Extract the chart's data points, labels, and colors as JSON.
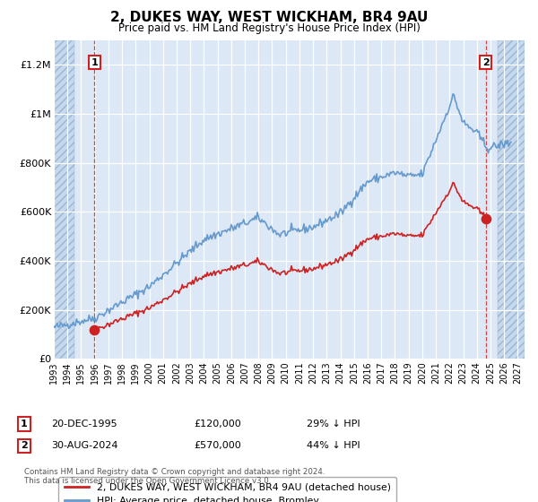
{
  "title": "2, DUKES WAY, WEST WICKHAM, BR4 9AU",
  "subtitle": "Price paid vs. HM Land Registry's House Price Index (HPI)",
  "bg_color": "#dce8f5",
  "hpi_color": "#6699cc",
  "price_color": "#cc2222",
  "sale1_date": 1995.97,
  "sale1_price": 120000,
  "sale2_date": 2024.66,
  "sale2_price": 570000,
  "legend_label_price": "2, DUKES WAY, WEST WICKHAM, BR4 9AU (detached house)",
  "legend_label_hpi": "HPI: Average price, detached house, Bromley",
  "footnote1_label": "1",
  "footnote1_date": "20-DEC-1995",
  "footnote1_price": "£120,000",
  "footnote1_pct": "29% ↓ HPI",
  "footnote2_label": "2",
  "footnote2_date": "30-AUG-2024",
  "footnote2_price": "£570,000",
  "footnote2_pct": "44% ↓ HPI",
  "copyright": "Contains HM Land Registry data © Crown copyright and database right 2024.\nThis data is licensed under the Open Government Licence v3.0.",
  "ylim": [
    0,
    1300000
  ],
  "xlim_start": 1993.0,
  "xlim_end": 2027.5,
  "yticks": [
    0,
    200000,
    400000,
    600000,
    800000,
    1000000,
    1200000
  ],
  "ytick_labels": [
    "£0",
    "£200K",
    "£400K",
    "£600K",
    "£800K",
    "£1M",
    "£1.2M"
  ],
  "xticks": [
    1993,
    1994,
    1995,
    1996,
    1997,
    1998,
    1999,
    2000,
    2001,
    2002,
    2003,
    2004,
    2005,
    2006,
    2007,
    2008,
    2009,
    2010,
    2011,
    2012,
    2013,
    2014,
    2015,
    2016,
    2017,
    2018,
    2019,
    2020,
    2021,
    2022,
    2023,
    2024,
    2025,
    2026,
    2027
  ],
  "hatch_left_end": 1994.5,
  "hatch_right_start": 2025.5
}
